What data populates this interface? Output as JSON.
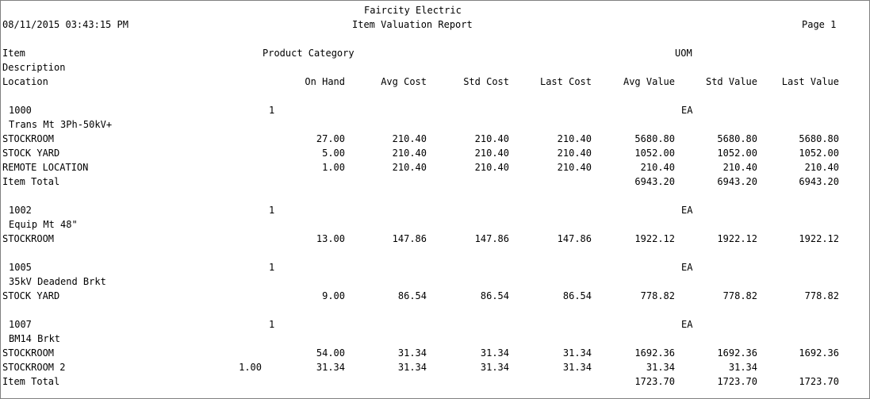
{
  "company": "Faircity Electric",
  "report_title": "Item Valuation Report",
  "datetime": "08/11/2015 03:43:15 PM",
  "page": "Page 1",
  "headers": {
    "item": "Item",
    "product_category": "Product Category",
    "uom": "UOM",
    "description": "Description",
    "location": "Location",
    "on_hand": "On Hand",
    "avg_cost": "Avg Cost",
    "std_cost": "Std Cost",
    "last_cost": "Last Cost",
    "avg_value": "Avg Value",
    "std_value": "Std Value",
    "last_value": "Last Value"
  },
  "items": [
    {
      "item": "1000",
      "category": "1",
      "uom": "EA",
      "description": "Trans Mt 3Ph-50kV+",
      "rows": [
        {
          "location": "STOCKROOM",
          "on_hand": "27.00",
          "avg_cost": "210.40",
          "std_cost": "210.40",
          "last_cost": "210.40",
          "avg_value": "5680.80",
          "std_value": "5680.80",
          "last_value": "5680.80"
        },
        {
          "location": "STOCK YARD",
          "on_hand": "5.00",
          "avg_cost": "210.40",
          "std_cost": "210.40",
          "last_cost": "210.40",
          "avg_value": "1052.00",
          "std_value": "1052.00",
          "last_value": "1052.00"
        },
        {
          "location": "REMOTE LOCATION",
          "on_hand": "1.00",
          "avg_cost": "210.40",
          "std_cost": "210.40",
          "last_cost": "210.40",
          "avg_value": "210.40",
          "std_value": "210.40",
          "last_value": "210.40"
        }
      ],
      "total": {
        "label": "Item Total",
        "avg_value": "6943.20",
        "std_value": "6943.20",
        "last_value": "6943.20"
      }
    },
    {
      "item": "1002",
      "category": "1",
      "uom": "EA",
      "description": "Equip Mt 48\"",
      "rows": [
        {
          "location": "STOCKROOM",
          "on_hand": "13.00",
          "avg_cost": "147.86",
          "std_cost": "147.86",
          "last_cost": "147.86",
          "avg_value": "1922.12",
          "std_value": "1922.12",
          "last_value": "1922.12"
        }
      ]
    },
    {
      "item": "1005",
      "category": "1",
      "uom": "EA",
      "description": "35kV Deadend Brkt",
      "rows": [
        {
          "location": "STOCK YARD",
          "on_hand": "9.00",
          "avg_cost": "86.54",
          "std_cost": "86.54",
          "last_cost": "86.54",
          "avg_value": "778.82",
          "std_value": "778.82",
          "last_value": "778.82"
        }
      ]
    },
    {
      "item": "1007",
      "category": "1",
      "uom": "EA",
      "description": "BM14 Brkt",
      "rows": [
        {
          "location": "STOCKROOM",
          "on_hand": "54.00",
          "avg_cost": "31.34",
          "std_cost": "31.34",
          "last_cost": "31.34",
          "avg_value": "1692.36",
          "std_value": "1692.36",
          "last_value": "1692.36"
        }
      ],
      "shifted_row": {
        "location": "STOCKROOM 2",
        "values": [
          "1.00",
          "31.34",
          "31.34",
          "31.34",
          "31.34",
          "31.34",
          "31.34"
        ]
      },
      "total": {
        "label": "Item Total",
        "avg_value": "1723.70",
        "std_value": "1723.70",
        "last_value": "1723.70"
      }
    }
  ]
}
